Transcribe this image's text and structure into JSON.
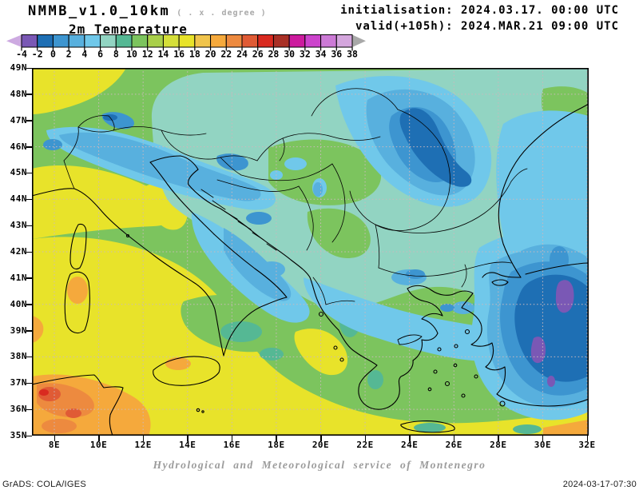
{
  "header": {
    "model": "NMMB_v1.0_10km",
    "model_note": "( . x . degree )",
    "variable": "2m Temperature",
    "initialisation": "initialisation: 2024.03.17. 00:00 UTC",
    "valid": "valid(+105h): 2024.MAR.21 09:00 UTC"
  },
  "colorbar": {
    "tick_labels": [
      "-4",
      "-2",
      "0",
      "2",
      "4",
      "6",
      "8",
      "10",
      "12",
      "14",
      "16",
      "18",
      "20",
      "22",
      "24",
      "26",
      "28",
      "30",
      "32",
      "34",
      "36",
      "38"
    ],
    "colors": [
      "#7a58b5",
      "#1e6fb4",
      "#3d95d0",
      "#58b0de",
      "#70c8ea",
      "#92d4c2",
      "#55b894",
      "#7cc45e",
      "#a9cf4a",
      "#d5df3a",
      "#e8e32a",
      "#f0c44c",
      "#f5a93c",
      "#ed8a3f",
      "#e05b35",
      "#d92a20",
      "#a93026",
      "#cc1b9e",
      "#cc44cc",
      "#cc7ad6",
      "#d4a6dd"
    ],
    "left_arrow_color": "#cdaae1",
    "right_arrow_color": "#a8a8a8"
  },
  "axes": {
    "lat_labels": [
      "49N",
      "48N",
      "47N",
      "46N",
      "45N",
      "44N",
      "43N",
      "42N",
      "41N",
      "40N",
      "39N",
      "38N",
      "37N",
      "36N",
      "35N"
    ],
    "lon_labels": [
      "8E",
      "10E",
      "12E",
      "14E",
      "16E",
      "18E",
      "20E",
      "22E",
      "24E",
      "26E",
      "28E",
      "30E",
      "32E"
    ]
  },
  "footer": {
    "service": "Hydrological and Meteorological service of Montenegro",
    "credit": "GrADS: COLA/IGES",
    "generated": "2024-03-17-07:30"
  },
  "chart_data": {
    "type": "heatmap",
    "title": "2m Temperature",
    "model": "NMMB_v1.0_10km",
    "init_time": "2024.03.17. 00:00 UTC",
    "valid_time": "2024.MAR.21 09:00 UTC (+105h)",
    "lead_hours": 105,
    "lon_range_deg_east": [
      7,
      32
    ],
    "lat_range_deg_north": [
      35,
      49
    ],
    "contour_levels_degC": [
      -4,
      -2,
      0,
      2,
      4,
      6,
      8,
      10,
      12,
      14,
      16,
      18,
      20,
      22,
      24,
      26,
      28,
      30,
      32,
      34,
      36,
      38
    ],
    "legend_position": "top-left horizontal colorbar",
    "grid": "dotted graticule every 2 degrees"
  }
}
